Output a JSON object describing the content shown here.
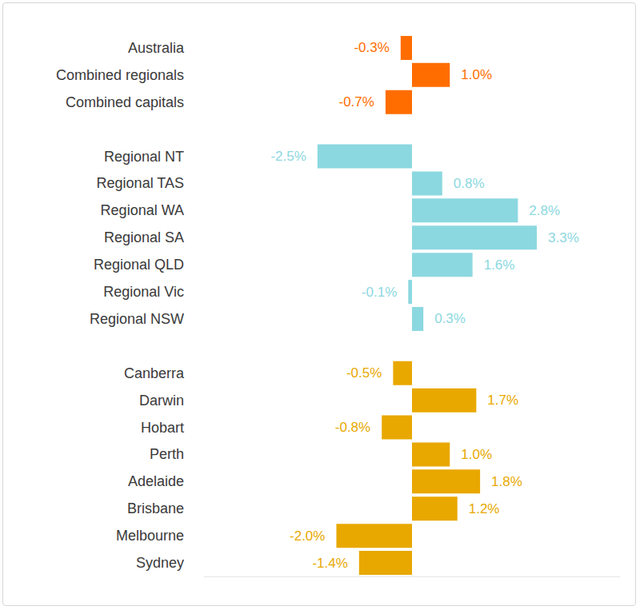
{
  "chart_data": {
    "type": "bar",
    "orientation": "horizontal",
    "categories": [
      "Australia",
      "Combined regionals",
      "Combined capitals",
      null,
      "Regional NT",
      "Regional TAS",
      "Regional WA",
      "Regional SA",
      "Regional QLD",
      "Regional Vic",
      "Regional NSW",
      null,
      "Canberra",
      "Darwin",
      "Hobart",
      "Perth",
      "Adelaide",
      "Brisbane",
      "Melbourne",
      "Sydney"
    ],
    "values": [
      -0.3,
      1.0,
      -0.7,
      null,
      -2.5,
      0.8,
      2.8,
      3.3,
      1.6,
      -0.1,
      0.3,
      null,
      -0.5,
      1.7,
      -0.8,
      1.0,
      1.8,
      1.2,
      -2.0,
      -1.4
    ],
    "value_labels": [
      "-0.3%",
      "1.0%",
      "-0.7%",
      null,
      "-2.5%",
      "0.8%",
      "2.8%",
      "3.3%",
      "1.6%",
      "-0.1%",
      "0.3%",
      null,
      "-0.5%",
      "1.7%",
      "-0.8%",
      "1.0%",
      "1.8%",
      "1.2%",
      "-2.0%",
      "-1.4%"
    ],
    "colors": [
      "#ff6d00",
      "#ff6d00",
      "#ff6d00",
      null,
      "#8cd8e0",
      "#8cd8e0",
      "#8cd8e0",
      "#8cd8e0",
      "#8cd8e0",
      "#8cd8e0",
      "#8cd8e0",
      null,
      "#e8a800",
      "#e8a800",
      "#e8a800",
      "#e8a800",
      "#e8a800",
      "#e8a800",
      "#e8a800",
      "#e8a800"
    ],
    "xlim": [
      -5.5,
      5.5
    ],
    "xticks": [],
    "grid": false,
    "data_labels": true,
    "tick_labels": "y"
  }
}
